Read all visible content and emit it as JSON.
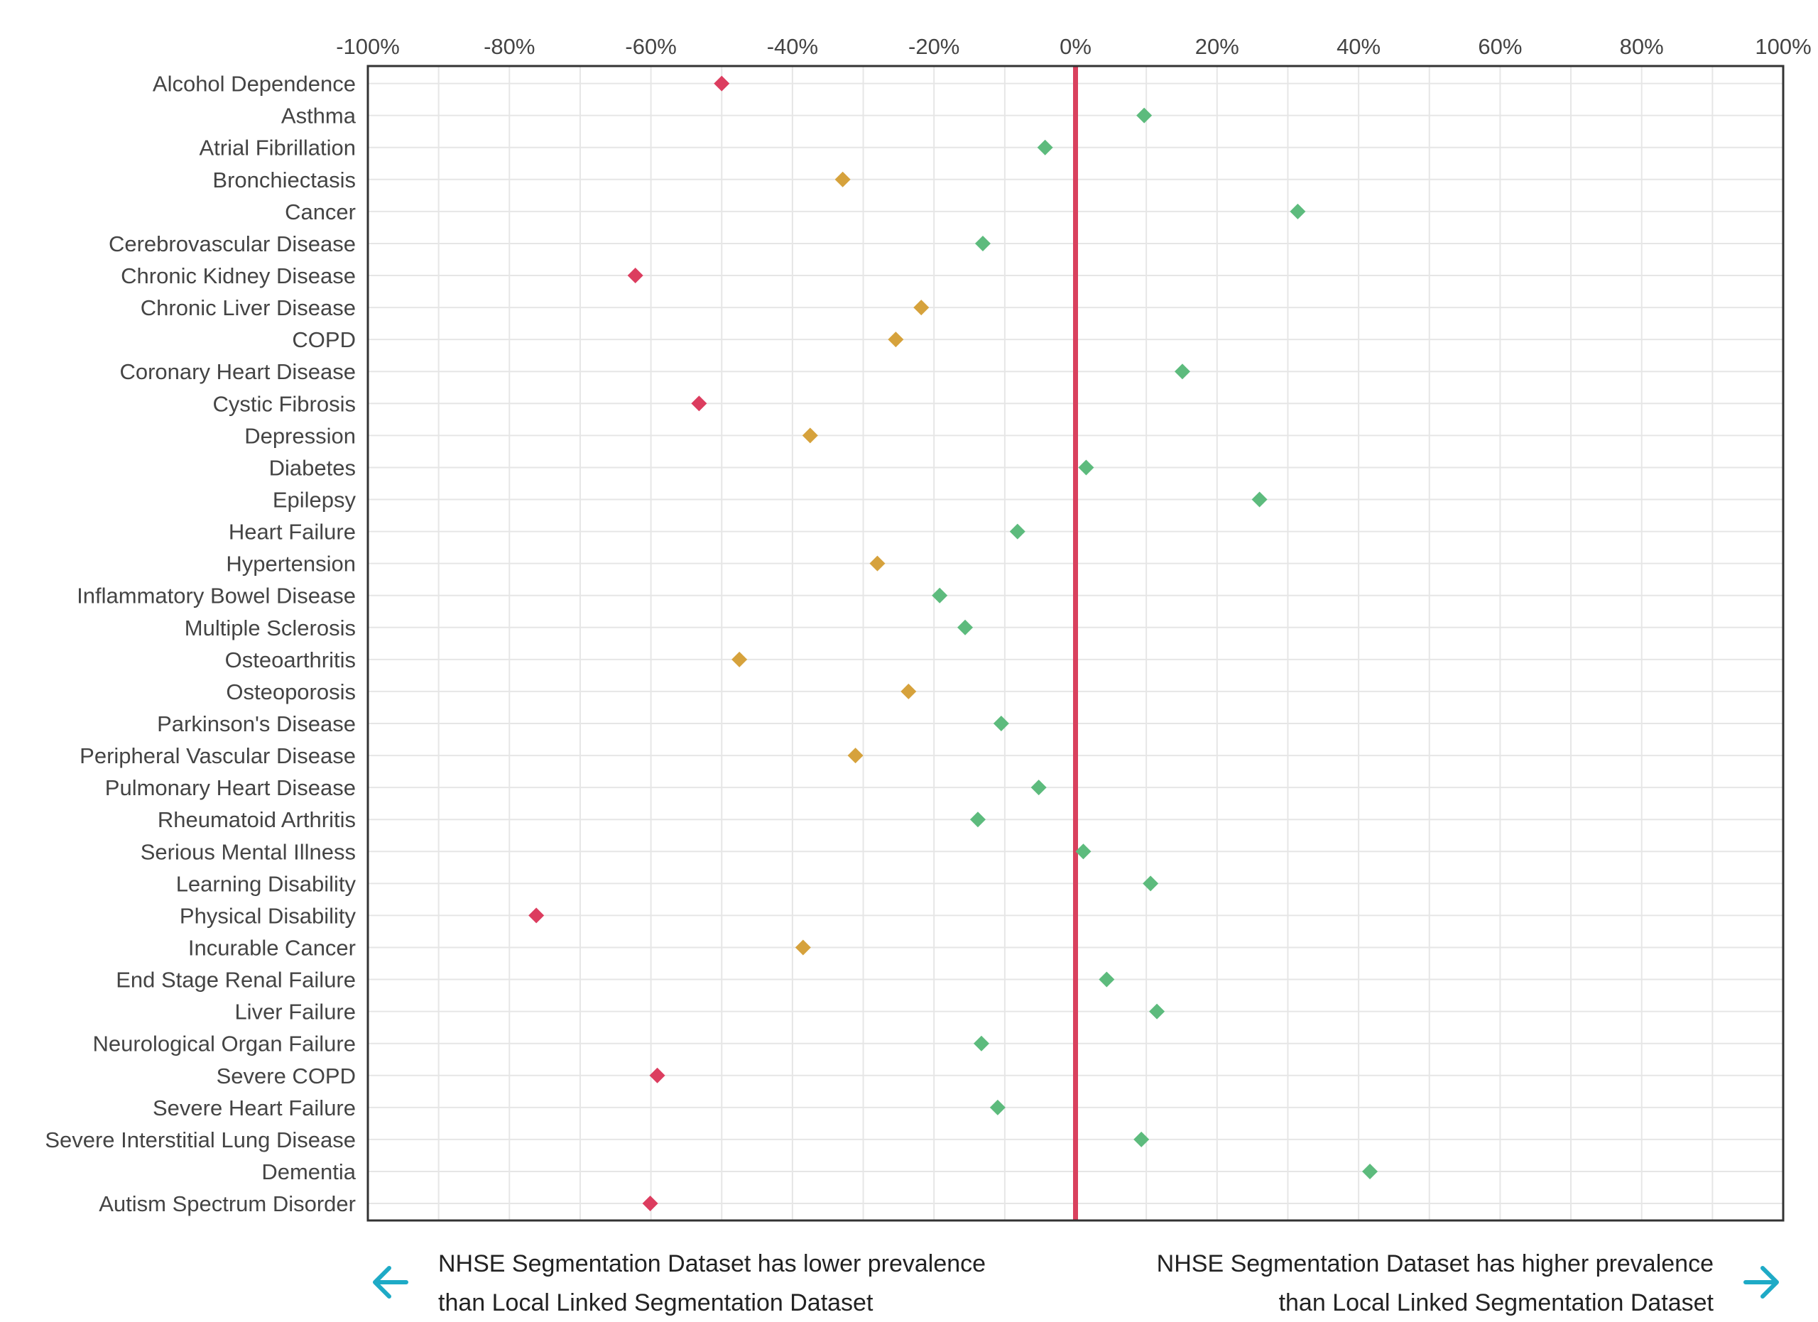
{
  "chart_data": {
    "type": "scatter",
    "orientation": "horizontal",
    "title": "",
    "xlabel": "",
    "ylabel": "",
    "xlim": [
      -100,
      100
    ],
    "x_ticks": [
      "-100%",
      "-80%",
      "-60%",
      "-40%",
      "-20%",
      "0%",
      "20%",
      "40%",
      "60%",
      "80%",
      "100%"
    ],
    "x_tick_values": [
      -100,
      -80,
      -60,
      -40,
      -20,
      0,
      20,
      40,
      60,
      80,
      100
    ],
    "grid": true,
    "reference_line": {
      "x": 0,
      "color": "#d9415e"
    },
    "colors": {
      "red": "#dc3d5f",
      "amber": "#d6a23c",
      "green": "#5dbb7d"
    },
    "points": [
      {
        "category": "Alcohol Dependence",
        "value": -50,
        "color": "red"
      },
      {
        "category": "Asthma",
        "value": 9.7,
        "color": "green"
      },
      {
        "category": "Atrial Fibrillation",
        "value": -4.3,
        "color": "green"
      },
      {
        "category": "Bronchiectasis",
        "value": -32.9,
        "color": "amber"
      },
      {
        "category": "Cancer",
        "value": 31.4,
        "color": "green"
      },
      {
        "category": "Cerebrovascular Disease",
        "value": -13.1,
        "color": "green"
      },
      {
        "category": "Chronic Kidney Disease",
        "value": -62.2,
        "color": "red"
      },
      {
        "category": "Chronic Liver Disease",
        "value": -21.8,
        "color": "amber"
      },
      {
        "category": "COPD",
        "value": -25.4,
        "color": "amber"
      },
      {
        "category": "Coronary Heart Disease",
        "value": 15.1,
        "color": "green"
      },
      {
        "category": "Cystic Fibrosis",
        "value": -53.2,
        "color": "red"
      },
      {
        "category": "Depression",
        "value": -37.5,
        "color": "amber"
      },
      {
        "category": "Diabetes",
        "value": 1.5,
        "color": "green"
      },
      {
        "category": "Epilepsy",
        "value": 26.0,
        "color": "green"
      },
      {
        "category": "Heart Failure",
        "value": -8.2,
        "color": "green"
      },
      {
        "category": "Hypertension",
        "value": -28.0,
        "color": "amber"
      },
      {
        "category": "Inflammatory Bowel Disease",
        "value": -19.2,
        "color": "green"
      },
      {
        "category": "Multiple Sclerosis",
        "value": -15.6,
        "color": "green"
      },
      {
        "category": "Osteoarthritis",
        "value": -47.5,
        "color": "amber"
      },
      {
        "category": "Osteoporosis",
        "value": -23.6,
        "color": "amber"
      },
      {
        "category": "Parkinson's Disease",
        "value": -10.5,
        "color": "green"
      },
      {
        "category": "Peripheral Vascular Disease",
        "value": -31.1,
        "color": "amber"
      },
      {
        "category": "Pulmonary Heart Disease",
        "value": -5.2,
        "color": "green"
      },
      {
        "category": "Rheumatoid Arthritis",
        "value": -13.8,
        "color": "green"
      },
      {
        "category": "Serious Mental Illness",
        "value": 1.1,
        "color": "green"
      },
      {
        "category": "Learning Disability",
        "value": 10.6,
        "color": "green"
      },
      {
        "category": "Physical Disability",
        "value": -76.2,
        "color": "red"
      },
      {
        "category": "Incurable Cancer",
        "value": -38.5,
        "color": "amber"
      },
      {
        "category": "End Stage Renal Failure",
        "value": 4.4,
        "color": "green"
      },
      {
        "category": "Liver Failure",
        "value": 11.5,
        "color": "green"
      },
      {
        "category": "Neurological Organ Failure",
        "value": -13.3,
        "color": "green"
      },
      {
        "category": "Severe COPD",
        "value": -59.1,
        "color": "red"
      },
      {
        "category": "Severe Heart Failure",
        "value": -11.0,
        "color": "green"
      },
      {
        "category": "Severe Interstitial Lung Disease",
        "value": 9.3,
        "color": "green"
      },
      {
        "category": "Dementia",
        "value": 41.6,
        "color": "green"
      },
      {
        "category": "Autism Spectrum Disorder",
        "value": -60.1,
        "color": "red"
      }
    ],
    "annotations": {
      "left_line1": "NHSE Segmentation Dataset has lower prevalence",
      "left_line2": "than Local Linked Segmentation Dataset",
      "right_line1": "NHSE Segmentation Dataset has higher prevalence",
      "right_line2": "than Local Linked Segmentation Dataset",
      "left_arrow_icon": "arrow-left-icon",
      "right_arrow_icon": "arrow-right-icon",
      "arrow_color": "#1eaac6"
    }
  }
}
